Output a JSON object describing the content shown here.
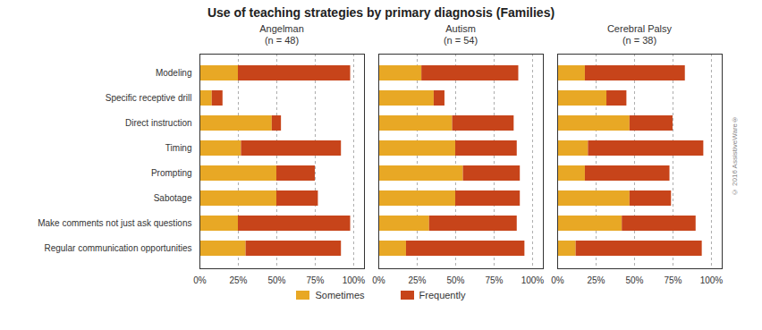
{
  "title": "Use of teaching strategies by primary diagnosis (Families)",
  "annotations": [
    {
      "text": "© 2016 AssistiveWare®"
    }
  ],
  "chart_data": [
    {
      "type": "bar",
      "title": "Angelman\n(n = 48)",
      "orientation": "horizontal",
      "stacked": true,
      "categories": [
        "Modeling",
        "Specific receptive drill",
        "Direct instruction",
        "Timing",
        "Prompting",
        "Sabotage",
        "Make comments not just ask questions",
        "Regular communication opportunities"
      ],
      "series": [
        {
          "name": "Sometimes",
          "color": "#E8A825",
          "values": [
            25,
            8,
            47,
            27,
            50,
            50,
            25,
            30
          ]
        },
        {
          "name": "Frequently",
          "color": "#C7441A",
          "values": [
            73,
            7,
            6,
            65,
            25,
            27,
            73,
            62
          ]
        }
      ],
      "xlim": [
        0,
        107
      ],
      "xticks": [
        {
          "value": 0,
          "label": "0%"
        },
        {
          "value": 25,
          "label": "25%"
        },
        {
          "value": 50,
          "label": "50%"
        },
        {
          "value": 75,
          "label": "75%"
        },
        {
          "value": 100,
          "label": "100%"
        }
      ],
      "grid": true,
      "legend": "bottom"
    },
    {
      "type": "bar",
      "title": "Autism\n(n = 54)",
      "orientation": "horizontal",
      "stacked": true,
      "categories": [
        "Modeling",
        "Specific receptive drill",
        "Direct instruction",
        "Timing",
        "Prompting",
        "Sabotage",
        "Make comments not just ask questions",
        "Regular communication opportunities"
      ],
      "series": [
        {
          "name": "Sometimes",
          "color": "#E8A825",
          "values": [
            28,
            36,
            48,
            50,
            55,
            50,
            33,
            18
          ]
        },
        {
          "name": "Frequently",
          "color": "#C7441A",
          "values": [
            63,
            7,
            40,
            40,
            37,
            42,
            57,
            77
          ]
        }
      ],
      "xlim": [
        0,
        107
      ],
      "xticks": [
        {
          "value": 0,
          "label": "0%"
        },
        {
          "value": 25,
          "label": "25%"
        },
        {
          "value": 50,
          "label": "50%"
        },
        {
          "value": 75,
          "label": "75%"
        },
        {
          "value": 100,
          "label": "100%"
        }
      ],
      "grid": true,
      "tick_labels": "x"
    },
    {
      "type": "bar",
      "title": "Cerebral Palsy\n(n = 38)",
      "orientation": "horizontal",
      "stacked": true,
      "categories": [
        "Modeling",
        "Specific receptive drill",
        "Direct instruction",
        "Timing",
        "Prompting",
        "Sabotage",
        "Make comments not just ask questions",
        "Regular communication opportunities"
      ],
      "series": [
        {
          "name": "Sometimes",
          "color": "#E8A825",
          "values": [
            18,
            32,
            47,
            20,
            18,
            47,
            42,
            12
          ]
        },
        {
          "name": "Frequently",
          "color": "#C7441A",
          "values": [
            65,
            13,
            28,
            75,
            55,
            27,
            48,
            82
          ]
        }
      ],
      "xlim": [
        0,
        107
      ],
      "xticks": [
        {
          "value": 0,
          "label": "0%"
        },
        {
          "value": 25,
          "label": "25%"
        },
        {
          "value": 50,
          "label": "50%"
        },
        {
          "value": 75,
          "label": "75%"
        },
        {
          "value": 100,
          "label": "100%"
        }
      ],
      "grid": true,
      "tick_labels": "x"
    }
  ]
}
